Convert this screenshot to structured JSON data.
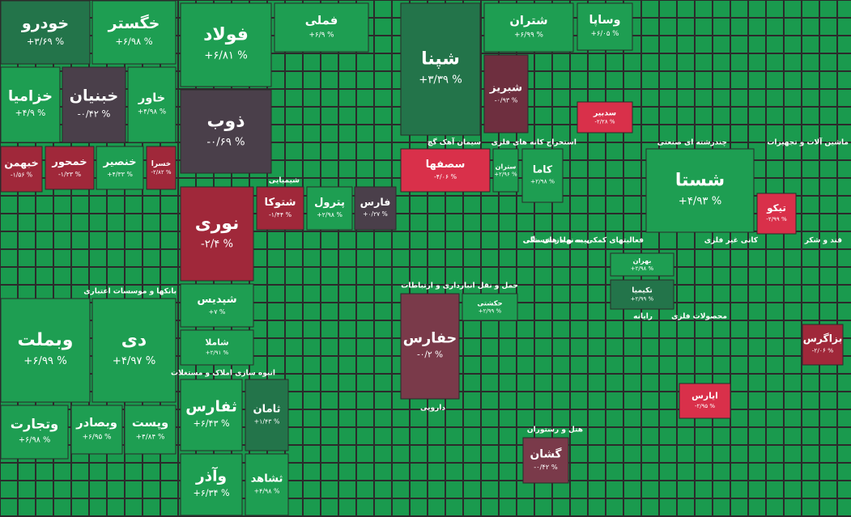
{
  "tiles": [
    {
      "label": "خودرو",
      "change": "+۳/۶۹ %",
      "color": "#23744a"
    },
    {
      "label": "خگستر",
      "change": "+۶/۹۸ %",
      "color": "#1e9e52"
    },
    {
      "label": "خزامیا",
      "change": "+۴/۹ %",
      "color": "#1e9e52"
    },
    {
      "label": "خبنیان",
      "change": "-۰/۴۲ %",
      "color": "#4a3f4a"
    },
    {
      "label": "خاور",
      "change": "+۴/۹۸ %",
      "color": "#1e9e52"
    },
    {
      "label": "خبهمن",
      "change": "-۱/۵۶ %",
      "color": "#a0283a"
    },
    {
      "label": "خمحور",
      "change": "-۱/۲۳ %",
      "color": "#a0283a"
    },
    {
      "label": "خنصیر",
      "change": "+۴/۳۳ %",
      "color": "#1e9e52"
    },
    {
      "label": "خسرا",
      "change": "-۲/۸۲ %",
      "color": "#a0283a"
    },
    {
      "label": "وبملت",
      "change": "+۶/۹۹ %",
      "color": "#1e9e52"
    },
    {
      "label": "دی",
      "change": "+۴/۹۷ %",
      "color": "#1e9e52"
    },
    {
      "label": "وتجارت",
      "change": "+۶/۹۸ %",
      "color": "#1e9e52"
    },
    {
      "label": "وبصادر",
      "change": "+۶/۹۵ %",
      "color": "#1e9e52"
    },
    {
      "label": "وپست",
      "change": "+۴/۸۴ %",
      "color": "#1e9e52"
    },
    {
      "label": "فولاد",
      "change": "+۶/۸۱ %",
      "color": "#1e9e52"
    },
    {
      "label": "ذوب",
      "change": "-۰/۶۹ %",
      "color": "#4a3f4a"
    },
    {
      "label": "فملی",
      "change": "+۶/۹ %",
      "color": "#1e9e52"
    },
    {
      "label": "نوری",
      "change": "-۲/۴ %",
      "color": "#a0283a"
    },
    {
      "label": "شتوکا",
      "change": "-۱/۴۴ %",
      "color": "#a0283a"
    },
    {
      "label": "پترول",
      "change": "+۲/۹۸ %",
      "color": "#1e9e52"
    },
    {
      "label": "فارس",
      "change": "+۰/۲۷ %",
      "color": "#4a3f4a"
    },
    {
      "label": "شپدیس",
      "change": "+۷ %",
      "color": "#1e9e52"
    },
    {
      "label": "شاملا",
      "change": "+۲/۹۱ %",
      "color": "#1e9e52"
    },
    {
      "label": "ثفارس",
      "change": "+۶/۴۳ %",
      "color": "#1e9e52"
    },
    {
      "label": "ثامان",
      "change": "+۱/۴۳ %",
      "color": "#23744a"
    },
    {
      "label": "وآذر",
      "change": "+۶/۳۴ %",
      "color": "#1e9e52"
    },
    {
      "label": "ثشاهد",
      "change": "+۴/۹۸ %",
      "color": "#1e9e52"
    },
    {
      "label": "شپنا",
      "change": "+۳/۳۹ %",
      "color": "#23744a"
    },
    {
      "label": "سصفها",
      "change": "-۴/۰۶ %",
      "color": "#d9304a"
    },
    {
      "label": "ستران",
      "change": "+۲/۹۶ %",
      "color": "#1e9e52"
    },
    {
      "label": "حفارس",
      "change": "-۰/۲ %",
      "color": "#7a3a4a"
    },
    {
      "label": "حکشتی",
      "change": "+۲/۹۹ %",
      "color": "#1e9e52"
    },
    {
      "label": "گشان",
      "change": "-۰/۴۲ %",
      "color": "#7a3a4a"
    },
    {
      "label": "شتران",
      "change": "+۶/۹۹ %",
      "color": "#1e9e52"
    },
    {
      "label": "شبریز",
      "change": "-۰/۹۳ %",
      "color": "#6e2f3f"
    },
    {
      "label": "وساپا",
      "change": "+۶/۰۵ %",
      "color": "#1e9e52"
    },
    {
      "label": "سدبیر",
      "change": "-۲/۲۸ %",
      "color": "#d9304a"
    },
    {
      "label": "کاما",
      "change": "+۲/۹۸ %",
      "color": "#1e9e52"
    },
    {
      "label": "شستا",
      "change": "+۴/۹۳ %",
      "color": "#1e9e52"
    },
    {
      "label": "بهران",
      "change": "+۲/۹۸ %",
      "color": "#1e9e52"
    },
    {
      "label": "تکیمیا",
      "change": "+۲/۹۹ %",
      "color": "#23744a"
    },
    {
      "label": "ایارس",
      "change": "-۲/۹۵ %",
      "color": "#d9304a"
    },
    {
      "label": "تیکو",
      "change": "-۲/۹۹ %",
      "color": "#d9304a"
    },
    {
      "label": "بزاگرس",
      "change": "-۲/۰۶ %",
      "color": "#a0283a"
    }
  ],
  "sectors": [
    {
      "label": "بانکها و موسسات اعتباری"
    },
    {
      "label": "شیمیایی"
    },
    {
      "label": "انبوه سازی املاک و مستغلات"
    },
    {
      "label": "سیمان آهک گچ"
    },
    {
      "label": "حمل و نقل انبارداری و ارتباطات"
    },
    {
      "label": "دارویی"
    },
    {
      "label": "هتل و رستوران"
    },
    {
      "label": "استخراج کانه های فلزی"
    },
    {
      "label": "فعالیتهای کمکی به نهاد های مالی"
    },
    {
      "label": "بیمه و بازنشستگی"
    },
    {
      "label": "کانی غیر فلزی"
    },
    {
      "label": "قند و شکر"
    },
    {
      "label": "رایانه"
    },
    {
      "label": "محصولات فلزی"
    },
    {
      "label": "چندرشته ای صنعتی"
    },
    {
      "label": "ماشین آلات و تجهیزات"
    }
  ]
}
